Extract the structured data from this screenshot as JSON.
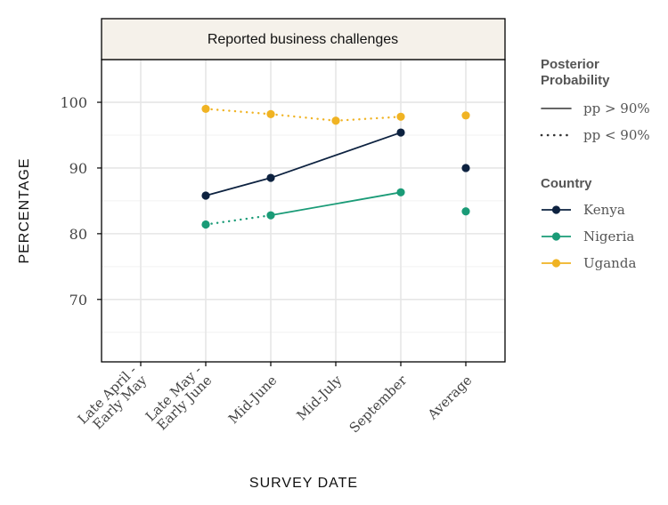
{
  "chart_data": {
    "type": "line",
    "title": "Reported business challenges",
    "xlabel": "SURVEY DATE",
    "ylabel": "PERCENTAGE",
    "categories": [
      "Late April -\nEarly May",
      "Late May -\nEarly June",
      "Mid-June",
      "Mid-July",
      "September",
      "Average"
    ],
    "ylim": [
      60.5,
      106.5
    ],
    "yticks": [
      70,
      80,
      90,
      100
    ],
    "grid": true,
    "legend_placement": "right",
    "legend": {
      "pp_title": "Posterior\nProbability",
      "pp_items": [
        {
          "label": "pp > 90%",
          "style": "solid"
        },
        {
          "label": "pp < 90%",
          "style": "dotted"
        }
      ],
      "country_title": "Country"
    },
    "series": [
      {
        "name": "Kenya",
        "color": "#0d2240",
        "values": [
          null,
          85.8,
          88.5,
          null,
          95.4,
          90.0
        ],
        "segments": [
          {
            "from": 1,
            "to": 2,
            "style": "solid"
          },
          {
            "from": 2,
            "to": 4,
            "style": "solid"
          }
        ]
      },
      {
        "name": "Nigeria",
        "color": "#1a9b77",
        "values": [
          null,
          81.4,
          82.8,
          null,
          86.3,
          83.4
        ],
        "segments": [
          {
            "from": 1,
            "to": 2,
            "style": "dotted"
          },
          {
            "from": 2,
            "to": 4,
            "style": "solid"
          }
        ]
      },
      {
        "name": "Uganda",
        "color": "#f0b323",
        "values": [
          null,
          99.0,
          98.2,
          97.2,
          97.8,
          98.0
        ],
        "segments": [
          {
            "from": 1,
            "to": 2,
            "style": "dotted"
          },
          {
            "from": 2,
            "to": 3,
            "style": "dotted"
          },
          {
            "from": 3,
            "to": 4,
            "style": "dotted"
          }
        ]
      }
    ]
  }
}
